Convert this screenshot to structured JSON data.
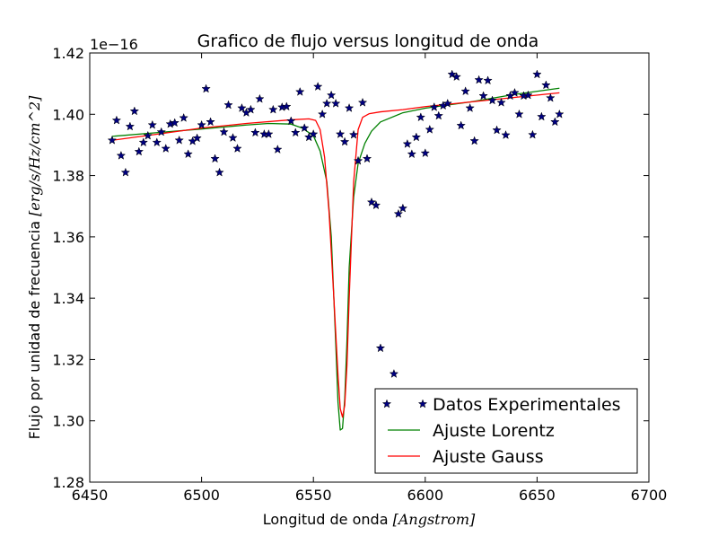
{
  "chart_data": {
    "type": "scatter",
    "title": "Grafico de flujo versus longitud de onda",
    "xlabel": "Longitud de onda",
    "xlabel_unit": "[Angstrom]",
    "ylabel": "Flujo por unidad de frecuencia",
    "ylabel_unit": "[erg/s/Hz/cm^2]",
    "y_offset_label": "1e−16",
    "xlim": [
      6450,
      6700
    ],
    "ylim": [
      1.28,
      1.42
    ],
    "xticks": [
      6450,
      6500,
      6550,
      6600,
      6650,
      6700
    ],
    "yticks": [
      1.28,
      1.3,
      1.32,
      1.34,
      1.36,
      1.38,
      1.4,
      1.42
    ],
    "grid": false,
    "legend_position": "lower-right",
    "series": [
      {
        "name": "Datos Experimentales",
        "kind": "markers",
        "marker": "star",
        "color": "#000080",
        "x": [
          6460,
          6462,
          6464,
          6466,
          6468,
          6470,
          6472,
          6474,
          6476,
          6478,
          6480,
          6482,
          6484,
          6486,
          6488,
          6490,
          6492,
          6494,
          6496,
          6498,
          6500,
          6502,
          6504,
          6506,
          6508,
          6510,
          6512,
          6514,
          6516,
          6518,
          6520,
          6522,
          6524,
          6526,
          6528,
          6530,
          6532,
          6534,
          6536,
          6538,
          6540,
          6542,
          6544,
          6546,
          6548,
          6550,
          6552,
          6554,
          6556,
          6558,
          6560,
          6562,
          6564,
          6566,
          6568,
          6570,
          6572,
          6574,
          6576,
          6578,
          6580,
          6582,
          6584,
          6586,
          6588,
          6590,
          6592,
          6594,
          6596,
          6598,
          6600,
          6602,
          6604,
          6606,
          6608,
          6610,
          6612,
          6614,
          6616,
          6618,
          6620,
          6622,
          6624,
          6626,
          6628,
          6630,
          6632,
          6634,
          6636,
          6638,
          6640,
          6642,
          6644,
          6646,
          6648,
          6650,
          6652,
          6654,
          6656,
          6658,
          6660
        ],
        "y": [
          1.3915,
          1.398,
          1.3865,
          1.381,
          1.396,
          1.401,
          1.3878,
          1.3908,
          1.393,
          1.3965,
          1.3908,
          1.3942,
          1.3888,
          1.3968,
          1.3972,
          1.3915,
          1.3988,
          1.387,
          1.3912,
          1.3922,
          1.3965,
          1.4083,
          1.3975,
          1.3855,
          1.381,
          1.3942,
          1.403,
          1.3923,
          1.3888,
          1.402,
          1.4005,
          1.4015,
          1.394,
          1.405,
          1.3935,
          1.3935,
          1.4015,
          1.3885,
          1.4023,
          1.4025,
          1.3978,
          1.394,
          1.4073,
          1.3955,
          1.3925,
          1.3935,
          1.409,
          1.4,
          1.4035,
          1.4062,
          1.4035,
          1.3935,
          1.391,
          1.402,
          1.3933,
          1.3848,
          1.4038,
          1.3855,
          1.3713,
          1.3703,
          1.3237,
          1.2973,
          1.3055,
          1.3153,
          1.3675,
          1.3693,
          1.3903,
          1.387,
          1.3925,
          1.399,
          1.3873,
          1.395,
          1.4023,
          1.3995,
          1.4028,
          1.4035,
          1.413,
          1.4122,
          1.3963,
          1.4075,
          1.402,
          1.3913,
          1.4112,
          1.406,
          1.411,
          1.4045,
          1.3948,
          1.4038,
          1.3932,
          1.406,
          1.407,
          1.4,
          1.406,
          1.4062,
          1.3933,
          1.413,
          1.3992,
          1.4095,
          1.4053,
          1.3975,
          1.4
        ]
      },
      {
        "name": "Ajuste Lorentz",
        "kind": "line",
        "color": "#008000",
        "x": [
          6460,
          6480,
          6500,
          6520,
          6530,
          6540,
          6545,
          6550,
          6553,
          6556,
          6558,
          6560,
          6561,
          6562,
          6563,
          6564,
          6565,
          6566,
          6568,
          6570,
          6573,
          6576,
          6580,
          6590,
          6600,
          6620,
          6640,
          6660
        ],
        "y": [
          1.3928,
          1.394,
          1.3952,
          1.3965,
          1.397,
          1.3968,
          1.3955,
          1.393,
          1.388,
          1.378,
          1.36,
          1.325,
          1.306,
          1.297,
          1.2975,
          1.307,
          1.326,
          1.35,
          1.373,
          1.384,
          1.3905,
          1.3945,
          1.3975,
          1.4005,
          1.402,
          1.404,
          1.4065,
          1.4085
        ]
      },
      {
        "name": "Ajuste Gauss",
        "kind": "line",
        "color": "#ff0000",
        "x": [
          6460,
          6480,
          6500,
          6520,
          6540,
          6548,
          6551,
          6553,
          6555,
          6557,
          6559,
          6561,
          6562,
          6563,
          6564,
          6565,
          6566,
          6568,
          6570,
          6572,
          6575,
          6580,
          6590,
          6600,
          6620,
          6640,
          6660
        ],
        "y": [
          1.3915,
          1.3935,
          1.3955,
          1.397,
          1.3982,
          1.3985,
          1.398,
          1.395,
          1.386,
          1.368,
          1.342,
          1.315,
          1.304,
          1.3012,
          1.305,
          1.318,
          1.34,
          1.378,
          1.395,
          1.399,
          1.4002,
          1.4008,
          1.4015,
          1.4025,
          1.404,
          1.4055,
          1.407
        ]
      }
    ]
  }
}
